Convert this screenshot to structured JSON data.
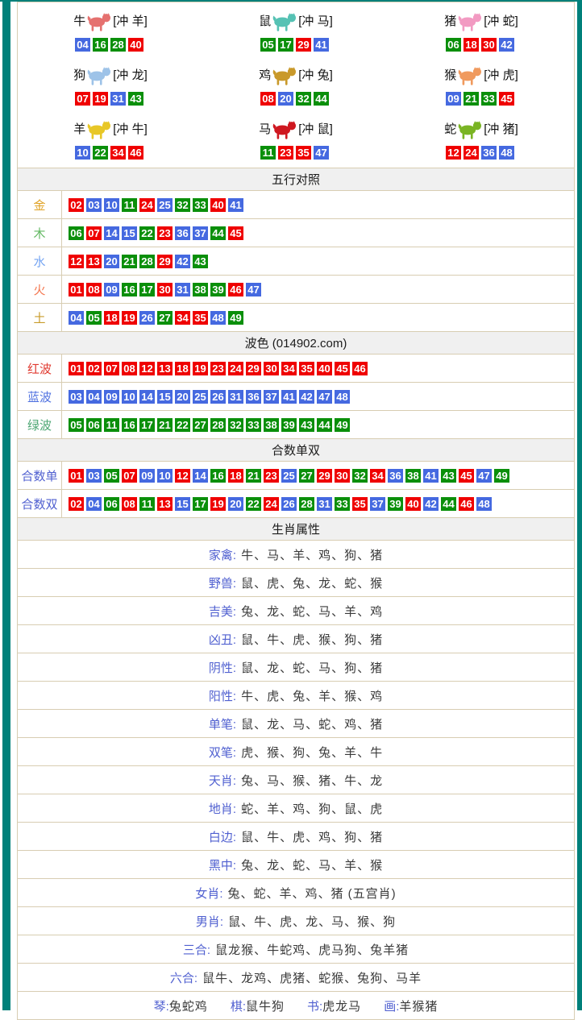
{
  "page": {
    "accent_teal": "#00807a",
    "border_tan": "#d8cdb2",
    "band_bg": "#f0f0f0"
  },
  "ball_colors": {
    "red": [
      "01",
      "02",
      "07",
      "08",
      "12",
      "13",
      "18",
      "19",
      "23",
      "24",
      "29",
      "30",
      "34",
      "35",
      "40",
      "45",
      "46"
    ],
    "blue": [
      "03",
      "04",
      "09",
      "10",
      "14",
      "15",
      "20",
      "25",
      "26",
      "31",
      "36",
      "37",
      "41",
      "42",
      "47",
      "48"
    ],
    "green": [
      "05",
      "06",
      "11",
      "16",
      "17",
      "21",
      "22",
      "27",
      "28",
      "32",
      "33",
      "38",
      "39",
      "43",
      "44",
      "49"
    ]
  },
  "zodiac_section": {
    "cells": [
      {
        "name": "牛",
        "clash": "[冲 羊]",
        "animal": "ox",
        "color": "#e5716f",
        "numbers": [
          "04",
          "16",
          "28",
          "40"
        ]
      },
      {
        "name": "鼠",
        "clash": "[冲 马]",
        "animal": "rat",
        "color": "#56c2b4",
        "numbers": [
          "05",
          "17",
          "29",
          "41"
        ]
      },
      {
        "name": "猪",
        "clash": "[冲 蛇]",
        "animal": "pig",
        "color": "#f29ac2",
        "numbers": [
          "06",
          "18",
          "30",
          "42"
        ]
      },
      {
        "name": "狗",
        "clash": "[冲 龙]",
        "animal": "dog",
        "color": "#9ec3e8",
        "numbers": [
          "07",
          "19",
          "31",
          "43"
        ]
      },
      {
        "name": "鸡",
        "clash": "[冲 兔]",
        "animal": "rooster",
        "color": "#c9992a",
        "numbers": [
          "08",
          "20",
          "32",
          "44"
        ]
      },
      {
        "name": "猴",
        "clash": "[冲 虎]",
        "animal": "monkey",
        "color": "#f09a5e",
        "numbers": [
          "09",
          "21",
          "33",
          "45"
        ]
      },
      {
        "name": "羊",
        "clash": "[冲 牛]",
        "animal": "goat",
        "color": "#e8c727",
        "numbers": [
          "10",
          "22",
          "34",
          "46"
        ]
      },
      {
        "name": "马",
        "clash": "[冲 鼠]",
        "animal": "horse",
        "color": "#cf1820",
        "numbers": [
          "11",
          "23",
          "35",
          "47"
        ]
      },
      {
        "name": "蛇",
        "clash": "[冲 猪]",
        "animal": "snake",
        "color": "#7ab424",
        "numbers": [
          "12",
          "24",
          "36",
          "48"
        ]
      }
    ]
  },
  "five_elements": {
    "title": "五行对照",
    "rows": [
      {
        "label": "金",
        "color": "#e0a225",
        "numbers": [
          "02",
          "03",
          "10",
          "11",
          "24",
          "25",
          "32",
          "33",
          "40",
          "41"
        ]
      },
      {
        "label": "木",
        "color": "#63b863",
        "numbers": [
          "06",
          "07",
          "14",
          "15",
          "22",
          "23",
          "36",
          "37",
          "44",
          "45"
        ]
      },
      {
        "label": "水",
        "color": "#74a4f2",
        "numbers": [
          "12",
          "13",
          "20",
          "21",
          "28",
          "29",
          "42",
          "43"
        ]
      },
      {
        "label": "火",
        "color": "#f4764f",
        "numbers": [
          "01",
          "08",
          "09",
          "16",
          "17",
          "30",
          "31",
          "38",
          "39",
          "46",
          "47"
        ]
      },
      {
        "label": "土",
        "color": "#c89b2a",
        "numbers": [
          "04",
          "05",
          "18",
          "19",
          "26",
          "27",
          "34",
          "35",
          "48",
          "49"
        ]
      }
    ]
  },
  "waves": {
    "title": "波色 (014902.com)",
    "rows": [
      {
        "label": "红波",
        "color": "#e03a30",
        "numbers": [
          "01",
          "02",
          "07",
          "08",
          "12",
          "13",
          "18",
          "19",
          "23",
          "24",
          "29",
          "30",
          "34",
          "35",
          "40",
          "45",
          "46"
        ]
      },
      {
        "label": "蓝波",
        "color": "#5072e0",
        "numbers": [
          "03",
          "04",
          "09",
          "10",
          "14",
          "15",
          "20",
          "25",
          "26",
          "31",
          "36",
          "37",
          "41",
          "42",
          "47",
          "48"
        ]
      },
      {
        "label": "绿波",
        "color": "#4da673",
        "numbers": [
          "05",
          "06",
          "11",
          "16",
          "17",
          "21",
          "22",
          "27",
          "28",
          "32",
          "33",
          "38",
          "39",
          "43",
          "44",
          "49"
        ]
      }
    ]
  },
  "sum_parity": {
    "title": "合数单双",
    "rows": [
      {
        "label": "合数单",
        "color": "#5060d0",
        "numbers": [
          "01",
          "03",
          "05",
          "07",
          "09",
          "10",
          "12",
          "14",
          "16",
          "18",
          "21",
          "23",
          "25",
          "27",
          "29",
          "30",
          "32",
          "34",
          "36",
          "38",
          "41",
          "43",
          "45",
          "47",
          "49"
        ]
      },
      {
        "label": "合数双",
        "color": "#5060d0",
        "numbers": [
          "02",
          "04",
          "06",
          "08",
          "11",
          "13",
          "15",
          "17",
          "19",
          "20",
          "22",
          "24",
          "26",
          "28",
          "31",
          "33",
          "35",
          "37",
          "39",
          "40",
          "42",
          "44",
          "46",
          "48"
        ]
      }
    ]
  },
  "attributes": {
    "title": "生肖属性",
    "rows": [
      {
        "label": "家禽:",
        "value": "牛、马、羊、鸡、狗、猪"
      },
      {
        "label": "野兽:",
        "value": "鼠、虎、兔、龙、蛇、猴"
      },
      {
        "label": "吉美:",
        "value": "兔、龙、蛇、马、羊、鸡"
      },
      {
        "label": "凶丑:",
        "value": "鼠、牛、虎、猴、狗、猪"
      },
      {
        "label": "阴性:",
        "value": "鼠、龙、蛇、马、狗、猪"
      },
      {
        "label": "阳性:",
        "value": "牛、虎、兔、羊、猴、鸡"
      },
      {
        "label": "单笔:",
        "value": "鼠、龙、马、蛇、鸡、猪"
      },
      {
        "label": "双笔:",
        "value": "虎、猴、狗、兔、羊、牛"
      },
      {
        "label": "天肖:",
        "value": "兔、马、猴、猪、牛、龙"
      },
      {
        "label": "地肖:",
        "value": "蛇、羊、鸡、狗、鼠、虎"
      },
      {
        "label": "白边:",
        "value": "鼠、牛、虎、鸡、狗、猪"
      },
      {
        "label": "黑中:",
        "value": "兔、龙、蛇、马、羊、猴"
      },
      {
        "label": "女肖:",
        "value": "兔、蛇、羊、鸡、猪 (五宫肖)"
      },
      {
        "label": "男肖:",
        "value": "鼠、牛、虎、龙、马、猴、狗"
      },
      {
        "label": "三合:",
        "value": "鼠龙猴、牛蛇鸡、虎马狗、兔羊猪"
      },
      {
        "label": "六合:",
        "value": "鼠牛、龙鸡、虎猪、蛇猴、兔狗、马羊"
      }
    ],
    "footer_groups": [
      {
        "label": "琴:",
        "value": "兔蛇鸡"
      },
      {
        "label": "棋:",
        "value": "鼠牛狗"
      },
      {
        "label": "书:",
        "value": "虎龙马"
      },
      {
        "label": "画:",
        "value": "羊猴猪"
      }
    ]
  }
}
